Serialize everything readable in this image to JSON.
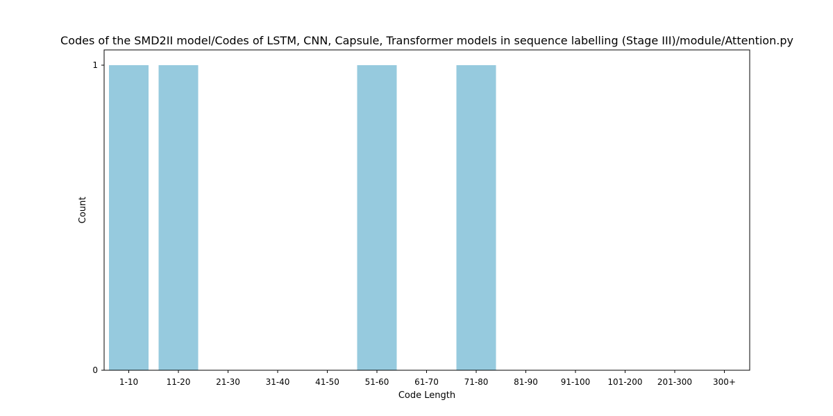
{
  "chart_data": {
    "type": "bar",
    "title": "Codes of the SMD2II model/Codes of LSTM, CNN, Capsule, Transformer models in sequence labelling (Stage III)/module/Attention.py",
    "xlabel": "Code Length",
    "ylabel": "Count",
    "categories": [
      "1-10",
      "11-20",
      "21-30",
      "31-40",
      "41-50",
      "51-60",
      "61-70",
      "71-80",
      "81-90",
      "91-100",
      "101-200",
      "201-300",
      "300+"
    ],
    "values": [
      1,
      1,
      0,
      0,
      0,
      1,
      0,
      1,
      0,
      0,
      0,
      0,
      0
    ],
    "ylim": [
      0,
      1
    ],
    "yticks": [
      "0",
      "1"
    ],
    "grid": false,
    "legend": "none",
    "bar_color": "#96cade"
  }
}
